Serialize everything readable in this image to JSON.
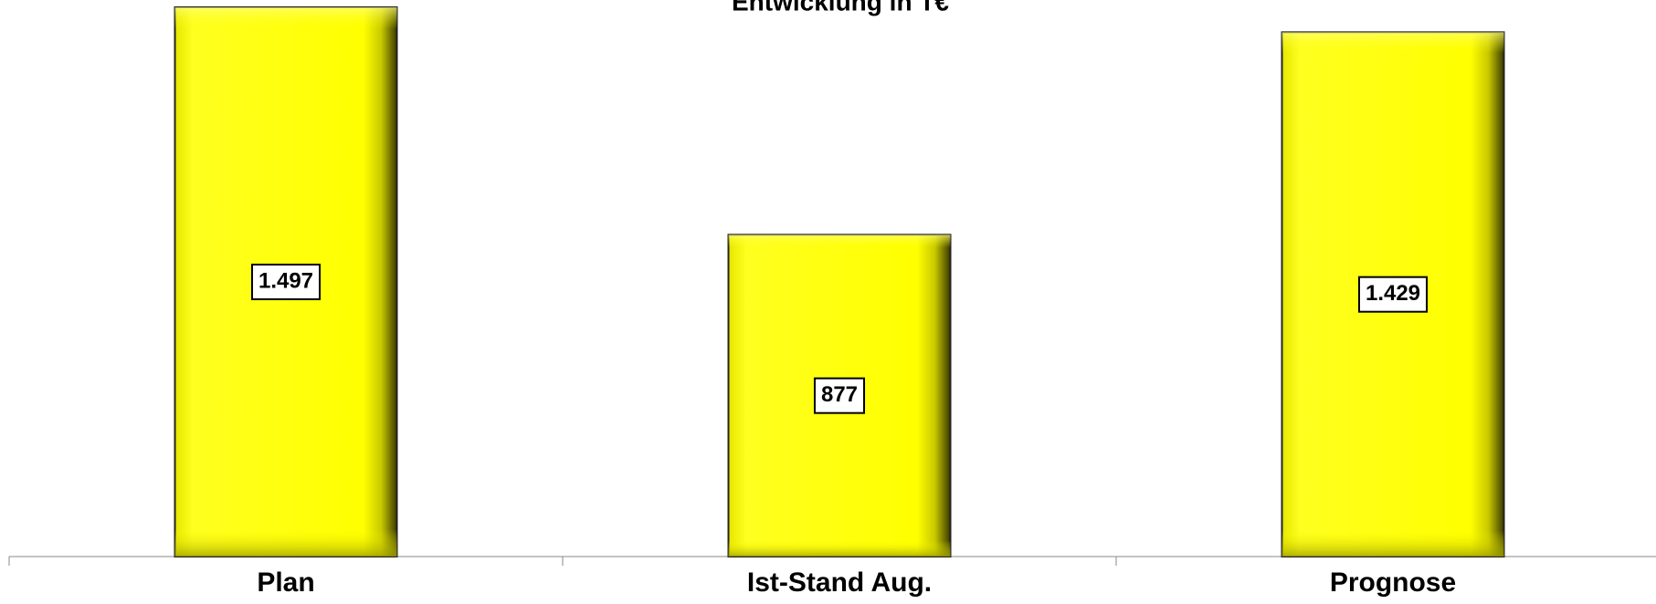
{
  "chart_data": {
    "type": "bar",
    "title": "Entwicklung in T€",
    "categories": [
      "Plan",
      "Ist-Stand Aug.",
      "Prognose"
    ],
    "values": [
      1497,
      877,
      1429
    ],
    "value_labels": [
      "1.497",
      "877",
      "1.429"
    ],
    "color": "#ffff00"
  }
}
